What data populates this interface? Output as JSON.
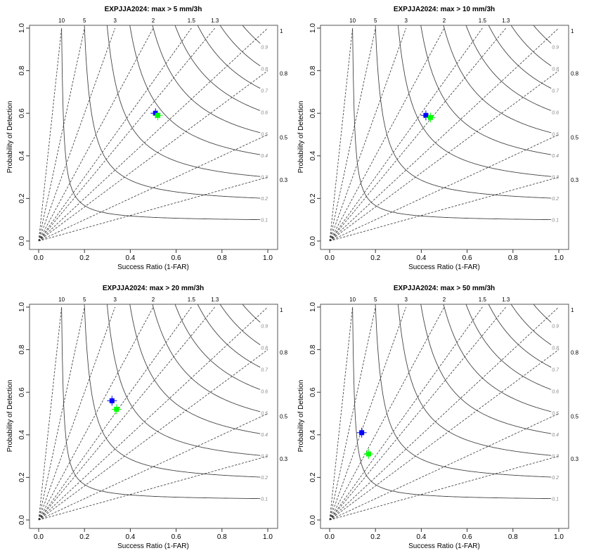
{
  "chart_data": [
    {
      "type": "scatter",
      "title": "EXPJJA2024: max > 5 mm/3h",
      "xlabel": "Success Ratio (1-FAR)",
      "ylabel": "Probability of Detection",
      "xlim": [
        0,
        1
      ],
      "ylim": [
        0,
        1
      ],
      "series": [
        {
          "name": "blue",
          "color": "#0000ff",
          "x": [
            0.51
          ],
          "y": [
            0.6
          ]
        },
        {
          "name": "green",
          "color": "#00ff00",
          "x": [
            0.52
          ],
          "y": [
            0.59
          ]
        }
      ]
    },
    {
      "type": "scatter",
      "title": "EXPJJA2024: max > 10 mm/3h",
      "xlabel": "Success Ratio (1-FAR)",
      "ylabel": "Probability of Detection",
      "xlim": [
        0,
        1
      ],
      "ylim": [
        0,
        1
      ],
      "series": [
        {
          "name": "blue",
          "color": "#0000ff",
          "x": [
            0.42
          ],
          "y": [
            0.59
          ]
        },
        {
          "name": "green",
          "color": "#00ff00",
          "x": [
            0.44
          ],
          "y": [
            0.58
          ]
        }
      ]
    },
    {
      "type": "scatter",
      "title": "EXPJJA2024: max > 20 mm/3h",
      "xlabel": "Success Ratio (1-FAR)",
      "ylabel": "Probability of Detection",
      "xlim": [
        0,
        1
      ],
      "ylim": [
        0,
        1
      ],
      "series": [
        {
          "name": "blue",
          "color": "#0000ff",
          "x": [
            0.32
          ],
          "y": [
            0.56
          ]
        },
        {
          "name": "green",
          "color": "#00ff00",
          "x": [
            0.34
          ],
          "y": [
            0.52
          ]
        }
      ]
    },
    {
      "type": "scatter",
      "title": "EXPJJA2024: max > 50 mm/3h",
      "xlabel": "Success Ratio (1-FAR)",
      "ylabel": "Probability of Detection",
      "xlim": [
        0,
        1
      ],
      "ylim": [
        0,
        1
      ],
      "series": [
        {
          "name": "blue",
          "color": "#0000ff",
          "x": [
            0.14
          ],
          "y": [
            0.41
          ]
        },
        {
          "name": "green",
          "color": "#00ff00",
          "x": [
            0.17
          ],
          "y": [
            0.31
          ]
        }
      ]
    }
  ],
  "ticks": [
    "0.0",
    "0.2",
    "0.4",
    "0.6",
    "0.8",
    "1.0"
  ],
  "bias_top": [
    "10",
    "5",
    "3",
    "2",
    "1.5",
    "1.3"
  ],
  "bias_right": [
    "1",
    "0.8",
    "0.5",
    "0.3"
  ],
  "csi_labels": [
    "0.1",
    "0.2",
    "0.3",
    "0.4",
    "0.5",
    "0.6",
    "0.7",
    "0.8",
    "0.9"
  ]
}
